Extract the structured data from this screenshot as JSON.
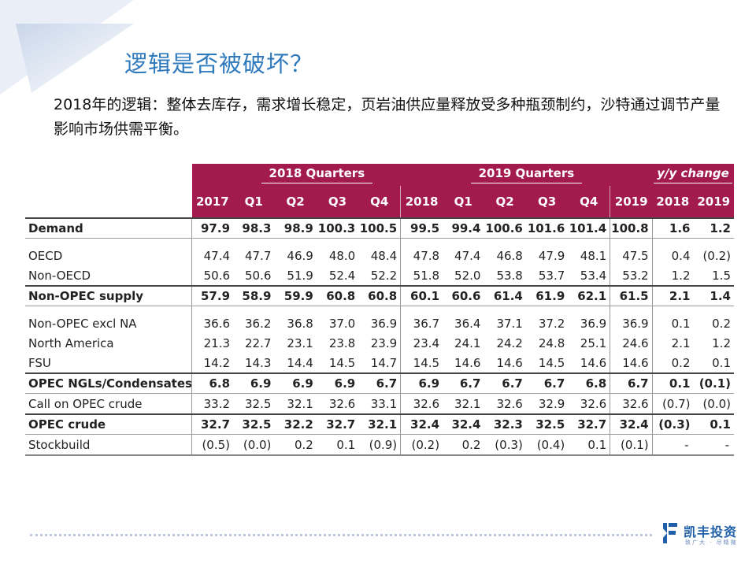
{
  "slide": {
    "title": "逻辑是否被破坏？",
    "subtitle": "2018年的逻辑：整体去库存，需求增长稳定，页岩油供应量释放受多种瓶颈制约，沙特通过调节产量影响市场供需平衡。"
  },
  "colors": {
    "header_bg": "#a31b4d",
    "title_blue": "#2f79bd",
    "corner_blue": "#dde6f3"
  },
  "table": {
    "groups": {
      "q2018": "2018 Quarters",
      "q2019": "2019 Quarters",
      "yy": "y/y change"
    },
    "columns": [
      "2017",
      "Q1",
      "Q2",
      "Q3",
      "Q4",
      "2018",
      "Q1",
      "Q2",
      "Q3",
      "Q4",
      "2019",
      "2018",
      "2019"
    ],
    "rows": [
      {
        "label": "Demand",
        "values": [
          "97.9",
          "98.3",
          "98.9",
          "100.3",
          "100.5",
          "99.5",
          "99.4",
          "100.6",
          "101.6",
          "101.4",
          "100.8",
          "1.6",
          "1.2"
        ]
      },
      {
        "label": "OECD",
        "values": [
          "47.4",
          "47.7",
          "46.9",
          "48.0",
          "48.4",
          "47.8",
          "47.4",
          "46.8",
          "47.9",
          "48.1",
          "47.5",
          "0.4",
          "(0.2)"
        ]
      },
      {
        "label": "Non-OECD",
        "values": [
          "50.6",
          "50.6",
          "51.9",
          "52.4",
          "52.2",
          "51.8",
          "52.0",
          "53.8",
          "53.7",
          "53.4",
          "53.2",
          "1.2",
          "1.5"
        ]
      },
      {
        "label": "Non-OPEC supply",
        "values": [
          "57.9",
          "58.9",
          "59.9",
          "60.8",
          "60.8",
          "60.1",
          "60.6",
          "61.4",
          "61.9",
          "62.1",
          "61.5",
          "2.1",
          "1.4"
        ]
      },
      {
        "label": "Non-OPEC excl NA",
        "values": [
          "36.6",
          "36.2",
          "36.8",
          "37.0",
          "36.9",
          "36.7",
          "36.4",
          "37.1",
          "37.2",
          "36.9",
          "36.9",
          "0.1",
          "0.2"
        ]
      },
      {
        "label": "North America",
        "values": [
          "21.3",
          "22.7",
          "23.1",
          "23.8",
          "23.9",
          "23.4",
          "24.1",
          "24.2",
          "24.8",
          "25.1",
          "24.6",
          "2.1",
          "1.2"
        ]
      },
      {
        "label": "FSU",
        "values": [
          "14.2",
          "14.3",
          "14.4",
          "14.5",
          "14.7",
          "14.5",
          "14.6",
          "14.6",
          "14.5",
          "14.6",
          "14.6",
          "0.2",
          "0.1"
        ]
      },
      {
        "label": "OPEC NGLs/Condensates",
        "values": [
          "6.8",
          "6.9",
          "6.9",
          "6.9",
          "6.7",
          "6.9",
          "6.7",
          "6.7",
          "6.7",
          "6.8",
          "6.7",
          "0.1",
          "(0.1)"
        ]
      },
      {
        "label": "Call on OPEC crude",
        "values": [
          "33.2",
          "32.5",
          "32.1",
          "32.6",
          "33.1",
          "32.6",
          "32.1",
          "32.6",
          "32.9",
          "32.6",
          "32.6",
          "(0.7)",
          "(0.0)"
        ]
      },
      {
        "label": "OPEC crude",
        "values": [
          "32.7",
          "32.5",
          "32.2",
          "32.7",
          "32.1",
          "32.4",
          "32.4",
          "32.3",
          "32.5",
          "32.7",
          "32.4",
          "(0.3)",
          "0.1"
        ]
      },
      {
        "label": "Stockbuild",
        "values": [
          "(0.5)",
          "(0.0)",
          "0.2",
          "0.1",
          "(0.9)",
          "(0.2)",
          "0.2",
          "(0.3)",
          "(0.4)",
          "0.1",
          "(0.1)",
          "-",
          "-"
        ]
      }
    ]
  },
  "logo": {
    "name": "凯丰投资",
    "tagline": "致广大 · 尽精微"
  }
}
